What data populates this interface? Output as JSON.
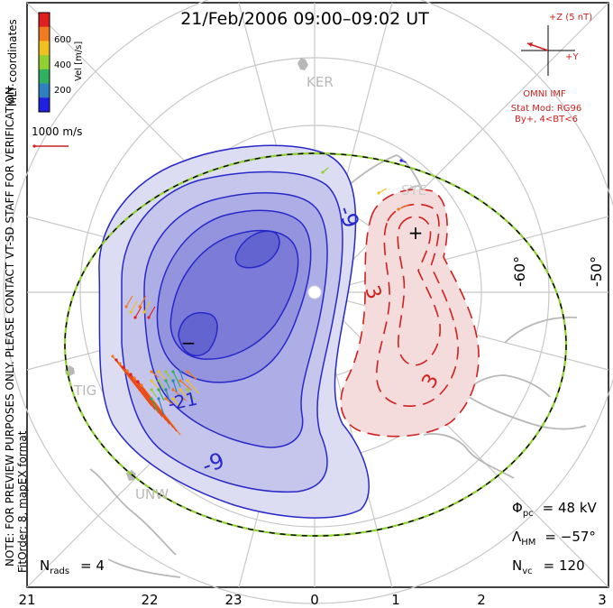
{
  "title": "21/Feb/2006 09:00–09:02 UT",
  "velocity_legend": {
    "label": "Vel [m/s]",
    "ticks": [
      "600",
      "400",
      "200"
    ],
    "colors": [
      "#e02020",
      "#f07a20",
      "#f0c020",
      "#90d030",
      "#30b060",
      "#3080c0",
      "#2020e0"
    ]
  },
  "mlt_coordinates_label": "MLT coordinates",
  "vector_scale_label": "1000 m/s",
  "preview_note": "NOTE: FOR PREVIEW PURPOSES ONLY. PLEASE CONTACT VT-SD STAFF FOR VERIFICATION.",
  "fit_note": "FitOrder: 8, mapEX format",
  "imf": {
    "scale_label": "+Z (5 nT)",
    "y_label": "+Y",
    "source": "OMNI IMF",
    "stat_mod": "Stat Mod: RG96",
    "condition": "By+, 4<BT<6"
  },
  "stations": [
    "KER",
    "TIG",
    "UNW",
    "SYE"
  ],
  "latitude_labels": [
    "-60°",
    "-50°"
  ],
  "contour_labels": [
    "-9",
    "-21",
    "-9",
    "3",
    "3"
  ],
  "potential_markers": [
    "−",
    "+"
  ],
  "stats": {
    "phi_pc_label": "Φ",
    "phi_pc_sub": "pc",
    "phi_pc_value": "= 48 kV",
    "lambda_hm_label": "Λ",
    "lambda_hm_sub": "HM",
    "lambda_hm_value": "= −57°",
    "n_vc_label": "N",
    "n_vc_sub": "vc",
    "n_vc_value": "= 120",
    "n_rads_label": "N",
    "n_rads_sub": "rads",
    "n_rads_value": "= 4"
  },
  "mlt_axis": [
    "21",
    "22",
    "23",
    "0",
    "1",
    "2",
    "3"
  ],
  "colors": {
    "negative_cell": "#3030d0",
    "positive_cell": "#d02020",
    "boundary_dash_a": "#000000",
    "boundary_dash_b": "#90d030",
    "grid": "#c8c8c8",
    "land": "#b8b8b8"
  }
}
